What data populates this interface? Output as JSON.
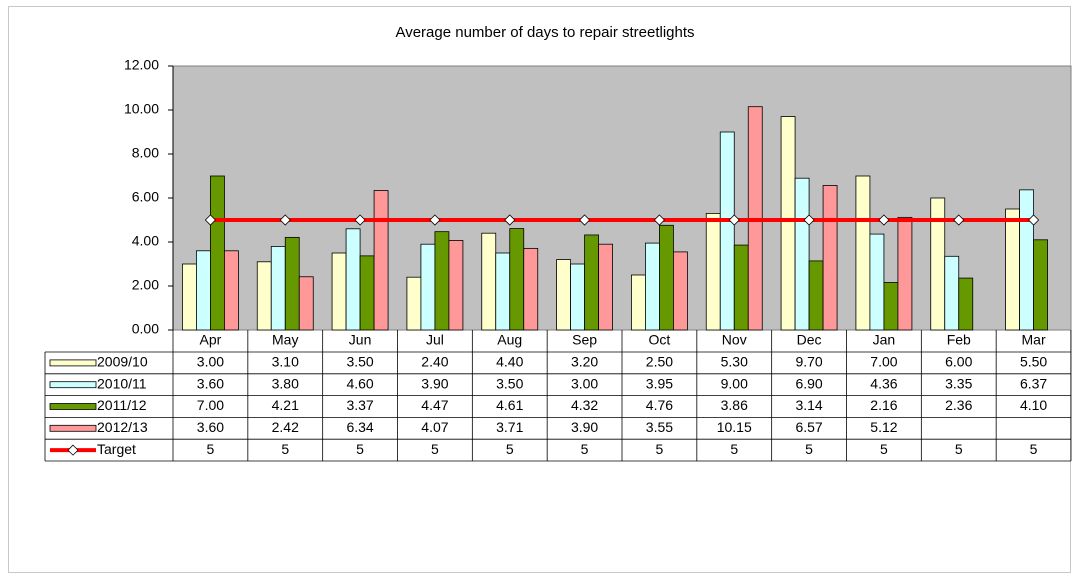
{
  "chart_data": {
    "type": "bar",
    "title": "Average number of days to repair streetlights",
    "categories": [
      "Apr",
      "May",
      "Jun",
      "Jul",
      "Aug",
      "Sep",
      "Oct",
      "Nov",
      "Dec",
      "Jan",
      "Feb",
      "Mar"
    ],
    "series": [
      {
        "name": "2009/10",
        "color": "#ffffcc",
        "values": [
          3.0,
          3.1,
          3.5,
          2.4,
          4.4,
          3.2,
          2.5,
          5.3,
          9.7,
          7.0,
          6.0,
          5.5
        ],
        "value_labels": [
          "3.00",
          "3.10",
          "3.50",
          "2.40",
          "4.40",
          "3.20",
          "2.50",
          "5.30",
          "9.70",
          "7.00",
          "6.00",
          "5.50"
        ]
      },
      {
        "name": "2010/11",
        "color": "#ccffff",
        "values": [
          3.6,
          3.8,
          4.6,
          3.9,
          3.5,
          3.0,
          3.95,
          9.0,
          6.9,
          4.36,
          3.35,
          6.37
        ],
        "value_labels": [
          "3.60",
          "3.80",
          "4.60",
          "3.90",
          "3.50",
          "3.00",
          "3.95",
          "9.00",
          "6.90",
          "4.36",
          "3.35",
          "6.37"
        ]
      },
      {
        "name": "2011/12",
        "color": "#669900",
        "values": [
          7.0,
          4.21,
          3.37,
          4.47,
          4.61,
          4.32,
          4.76,
          3.86,
          3.14,
          2.16,
          2.36,
          4.1
        ],
        "value_labels": [
          "7.00",
          "4.21",
          "3.37",
          "4.47",
          "4.61",
          "4.32",
          "4.76",
          "3.86",
          "3.14",
          "2.16",
          "2.36",
          "4.10"
        ]
      },
      {
        "name": "2012/13",
        "color": "#ff9999",
        "values": [
          3.6,
          2.42,
          6.34,
          4.07,
          3.71,
          3.9,
          3.55,
          10.15,
          6.57,
          5.12,
          null,
          null
        ],
        "value_labels": [
          "3.60",
          "2.42",
          "6.34",
          "4.07",
          "3.71",
          "3.90",
          "3.55",
          "10.15",
          "6.57",
          "5.12",
          null,
          null
        ]
      },
      {
        "name": "Target",
        "color": "#ff0000",
        "type": "line",
        "values": [
          5,
          5,
          5,
          5,
          5,
          5,
          5,
          5,
          5,
          5,
          5,
          5
        ]
      }
    ],
    "ylim": [
      0,
      12
    ],
    "yticks": [
      {
        "value": 0,
        "label": "0.00"
      },
      {
        "value": 2,
        "label": "2.00"
      },
      {
        "value": 4,
        "label": "4.00"
      },
      {
        "value": 6,
        "label": "6.00"
      },
      {
        "value": 8,
        "label": "8.00"
      },
      {
        "value": 10,
        "label": "10.00"
      },
      {
        "value": 12,
        "label": "12.00"
      }
    ],
    "grid": false
  }
}
